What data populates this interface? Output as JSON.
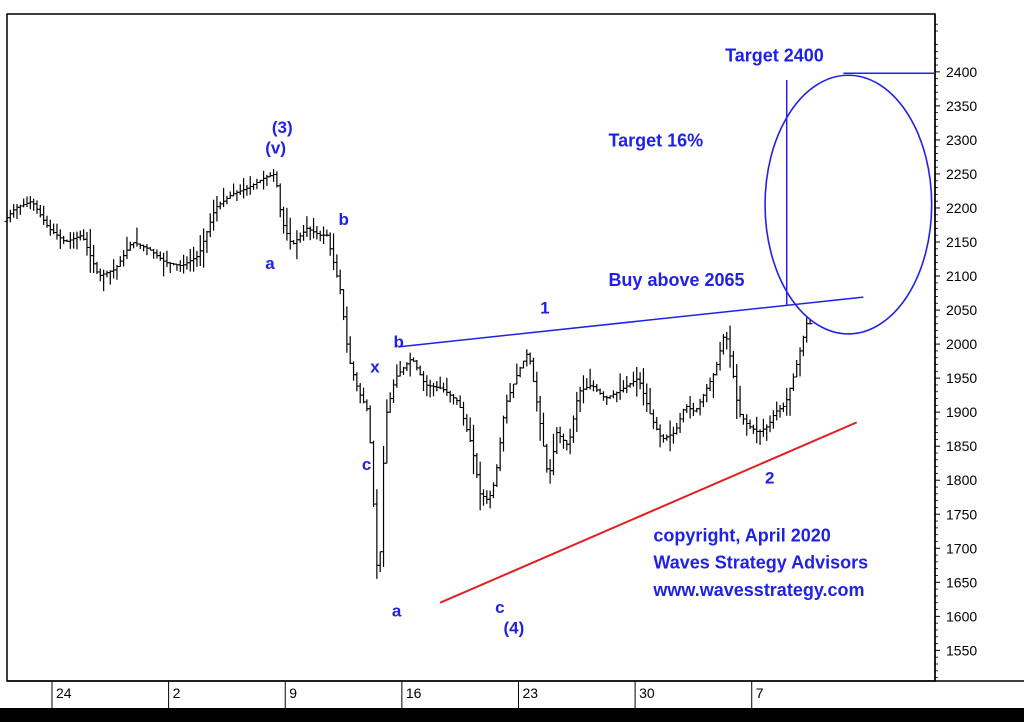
{
  "chart_data": {
    "type": "candlestick",
    "y_axis": {
      "ticks": [
        2400,
        2350,
        2300,
        2250,
        2200,
        2150,
        2100,
        2050,
        2000,
        1950,
        1900,
        1850,
        1800,
        1750,
        1700,
        1650,
        1600,
        1550
      ],
      "range": [
        1505,
        2485
      ],
      "position": "right"
    },
    "x_axis": {
      "ticks": [
        {
          "label": "24",
          "day": 0
        },
        {
          "label": "2",
          "day": 7
        },
        {
          "label": "9",
          "day": 14
        },
        {
          "label": "16",
          "day": 21
        },
        {
          "label": "23",
          "day": 28
        },
        {
          "label": "30",
          "day": 35
        },
        {
          "label": "7",
          "day": 42
        }
      ],
      "range": [
        -2.7,
        53
      ]
    },
    "price_path": [
      [
        -2.7,
        2180
      ],
      [
        -2,
        2200
      ],
      [
        -1,
        2210
      ],
      [
        0,
        2170
      ],
      [
        1,
        2150
      ],
      [
        2,
        2160
      ],
      [
        3,
        2100
      ],
      [
        4,
        2110
      ],
      [
        5,
        2150
      ],
      [
        6,
        2140
      ],
      [
        7,
        2120
      ],
      [
        8,
        2115
      ],
      [
        9,
        2130
      ],
      [
        10,
        2200
      ],
      [
        11,
        2220
      ],
      [
        12,
        2230
      ],
      [
        13,
        2245
      ],
      [
        13.6,
        2250
      ],
      [
        14,
        2180
      ],
      [
        14.6,
        2145
      ],
      [
        15.5,
        2170
      ],
      [
        16.3,
        2160
      ],
      [
        16.7,
        2160
      ],
      [
        17.5,
        2080
      ],
      [
        18,
        1980
      ],
      [
        18.6,
        1930
      ],
      [
        19.2,
        1900
      ],
      [
        19.8,
        1630
      ],
      [
        20.2,
        1890
      ],
      [
        20.8,
        1950
      ],
      [
        21.8,
        1980
      ],
      [
        22.6,
        1940
      ],
      [
        23.6,
        1935
      ],
      [
        24.6,
        1915
      ],
      [
        25.4,
        1850
      ],
      [
        25.9,
        1780
      ],
      [
        26.4,
        1770
      ],
      [
        26.8,
        1800
      ],
      [
        27.4,
        1910
      ],
      [
        28.2,
        1960
      ],
      [
        28.8,
        1990
      ],
      [
        29.4,
        1900
      ],
      [
        30,
        1800
      ],
      [
        30.5,
        1870
      ],
      [
        31.2,
        1850
      ],
      [
        31.8,
        1930
      ],
      [
        32.6,
        1940
      ],
      [
        33.4,
        1920
      ],
      [
        34.2,
        1930
      ],
      [
        34.8,
        1940
      ],
      [
        35.4,
        1950
      ],
      [
        36.2,
        1890
      ],
      [
        36.8,
        1860
      ],
      [
        37.6,
        1870
      ],
      [
        38.2,
        1910
      ],
      [
        38.8,
        1900
      ],
      [
        39.4,
        1930
      ],
      [
        40,
        1960
      ],
      [
        40.6,
        2020
      ],
      [
        41,
        1970
      ],
      [
        41.4,
        1900
      ],
      [
        42,
        1880
      ],
      [
        42.6,
        1870
      ],
      [
        43.2,
        1880
      ],
      [
        43.6,
        1900
      ],
      [
        44.2,
        1910
      ],
      [
        44.8,
        1960
      ],
      [
        45.2,
        2000
      ],
      [
        45.5,
        2030
      ]
    ],
    "lines": [
      {
        "name": "upper-trendline",
        "color": "#1f22e6",
        "from": [
          20.8,
          1996
        ],
        "to": [
          48.7,
          2069
        ]
      },
      {
        "name": "lower-trendline",
        "color": "#e02020",
        "from": [
          23.3,
          1620
        ],
        "to": [
          48.3,
          1885
        ]
      },
      {
        "name": "target-line",
        "color": "#1f22e6",
        "from": [
          47.5,
          2398
        ],
        "to": [
          53,
          2398
        ]
      },
      {
        "name": "target-vertical",
        "color": "#1f22e6",
        "from": [
          44.1,
          2388
        ],
        "to": [
          44.1,
          2058
        ]
      }
    ],
    "target_circle": {
      "center": [
        47.8,
        2205
      ],
      "radius_days": 5,
      "radius_price": 190,
      "color": "#1f22e6"
    },
    "wave_labels": [
      {
        "text": "(3)",
        "x": 13.2,
        "y": 2310
      },
      {
        "text": "(v)",
        "x": 12.8,
        "y": 2280
      },
      {
        "text": "a",
        "x": 12.8,
        "y": 2110
      },
      {
        "text": "b",
        "x": 17.2,
        "y": 2175
      },
      {
        "text": "b",
        "x": 20.5,
        "y": 1995
      },
      {
        "text": "x",
        "x": 19.1,
        "y": 1958
      },
      {
        "text": "c",
        "x": 18.6,
        "y": 1815
      },
      {
        "text": "a",
        "x": 20.4,
        "y": 1600
      },
      {
        "text": "1",
        "x": 29.3,
        "y": 2045
      },
      {
        "text": "c",
        "x": 26.6,
        "y": 1605
      },
      {
        "text": "(4)",
        "x": 27.1,
        "y": 1575
      },
      {
        "text": "2",
        "x": 42.8,
        "y": 1795
      }
    ],
    "annotations": [
      {
        "text": "Target 2400",
        "x": 40.4,
        "y": 2415
      },
      {
        "text": "Target 16%",
        "x": 33.4,
        "y": 2290
      },
      {
        "text": "Buy above 2065",
        "x": 33.4,
        "y": 2085
      },
      {
        "text": "copyright, April 2020",
        "x": 36.1,
        "y": 1710
      },
      {
        "text": "Waves Strategy Advisors",
        "x": 36.1,
        "y": 1670
      },
      {
        "text": "www.wavesstrategy.com",
        "x": 36.1,
        "y": 1630
      }
    ]
  },
  "colors": {
    "price": "#000000",
    "annotation": "#1f22e6",
    "support": "#e02020"
  }
}
